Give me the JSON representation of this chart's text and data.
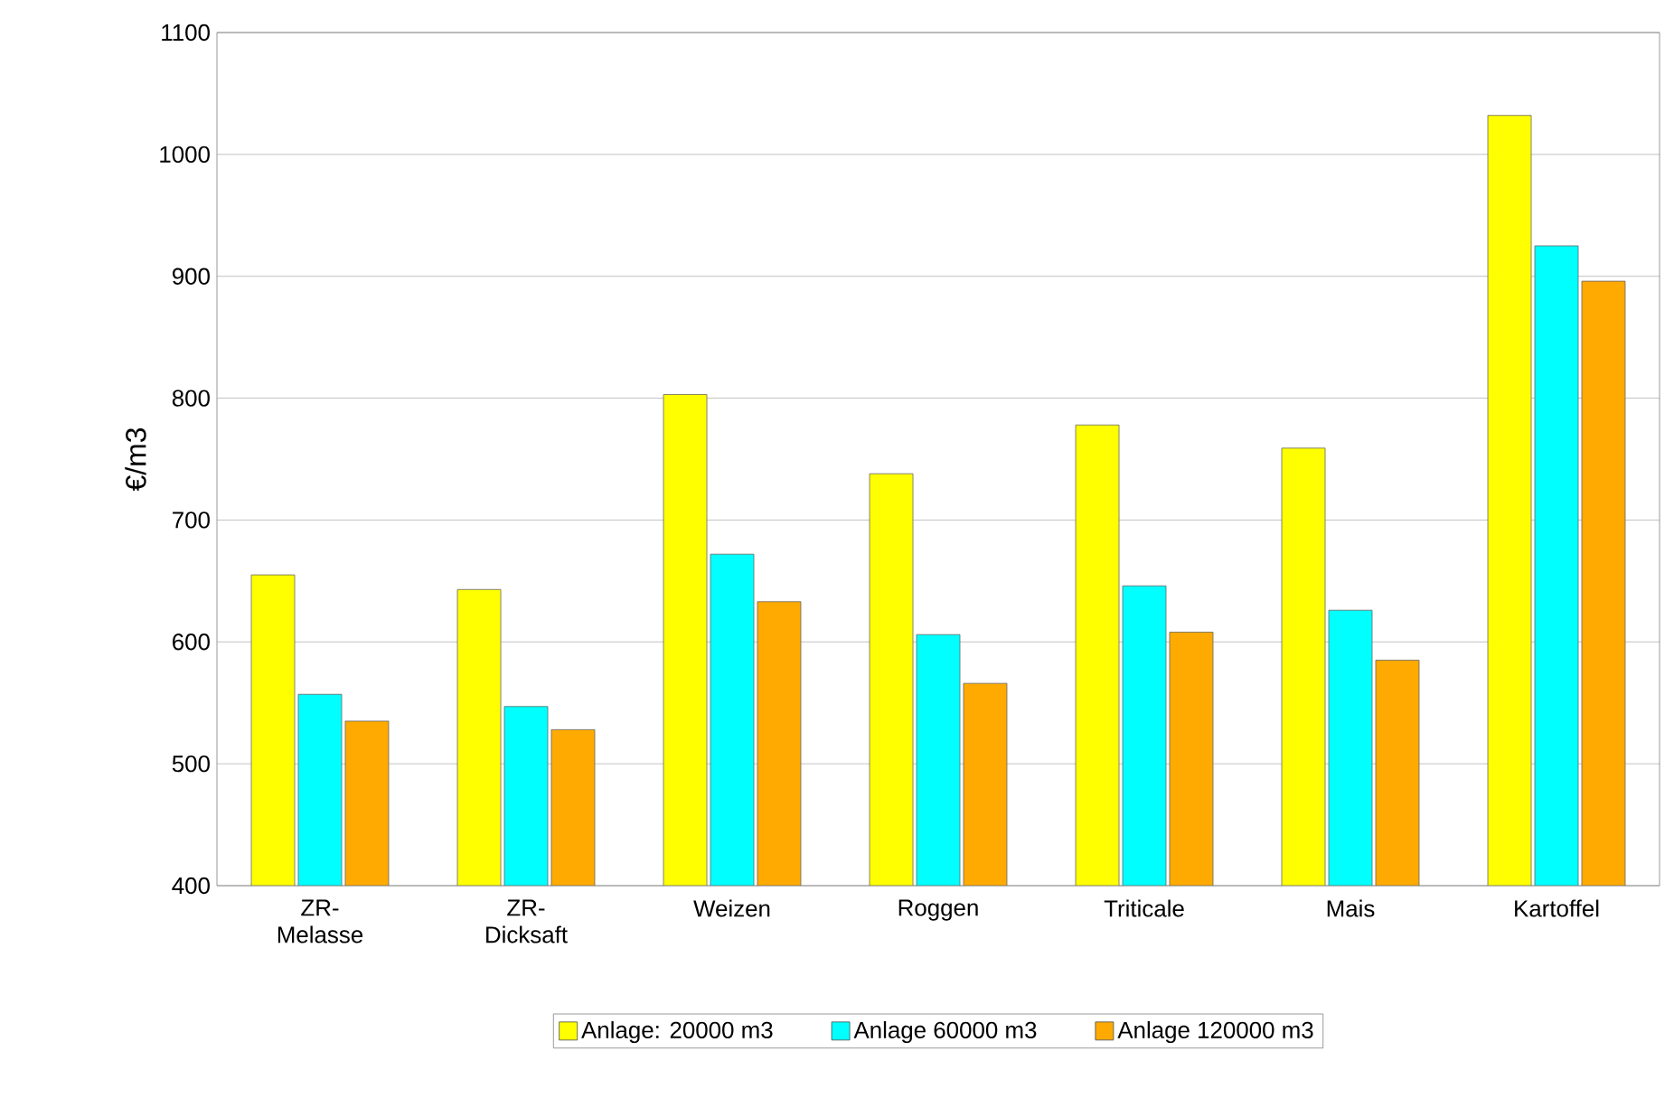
{
  "chart_data": {
    "type": "bar",
    "ylabel": "€/m3",
    "categories": [
      "ZR-Melasse",
      "ZR-Dicksaft",
      "Weizen",
      "Roggen",
      "Triticale",
      "Mais",
      "Kartoffel"
    ],
    "series": [
      {
        "name": "Anlage: 20000 m3",
        "color": "#ffff00",
        "values": [
          655,
          643,
          803,
          738,
          778,
          759,
          1032
        ]
      },
      {
        "name": "Anlage 60000 m3",
        "color": "#00ffff",
        "values": [
          557,
          547,
          672,
          606,
          646,
          626,
          925
        ]
      },
      {
        "name": "Anlage 120000 m3",
        "color": "#ffaa00",
        "values": [
          535,
          528,
          633,
          566,
          608,
          585,
          896
        ]
      }
    ],
    "ylim": [
      400,
      1100
    ],
    "yticks": [
      400,
      500,
      600,
      700,
      800,
      900,
      1000,
      1100
    ],
    "grid": "y",
    "legend": "bottom"
  }
}
